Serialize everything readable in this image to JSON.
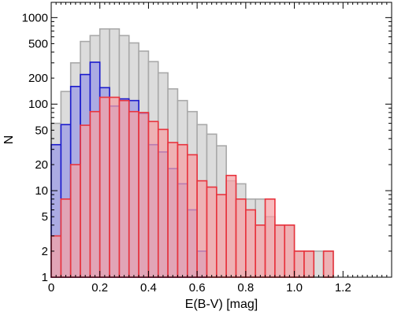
{
  "chart_data": {
    "type": "bar",
    "title": "",
    "xlabel": "E(B-V) [mag]",
    "ylabel": "N",
    "xlim": [
      0,
      1.4
    ],
    "ylim": [
      1,
      1500
    ],
    "y_scale": "log",
    "bin_width": 0.04,
    "x_ticks": [
      0,
      0.2,
      0.4,
      0.6,
      0.8,
      1.0,
      1.2
    ],
    "x_tick_labels": [
      "0",
      "0.2",
      "0.4",
      "0.6",
      "0.8",
      "1.0",
      "1.2"
    ],
    "y_ticks": [
      1,
      2,
      5,
      10,
      20,
      50,
      100,
      200,
      500,
      1000
    ],
    "y_tick_labels": [
      "1",
      "2",
      "5",
      "10",
      "20",
      "50",
      "100",
      "200",
      "500",
      "1000"
    ],
    "grid": false,
    "legend": "none",
    "series": [
      {
        "color": "#a9a9a9",
        "fill": "#dcdcdc",
        "bins_start": [
          0,
          0.04,
          0.08,
          0.12,
          0.16,
          0.2,
          0.24,
          0.28,
          0.32,
          0.36,
          0.4,
          0.44,
          0.48,
          0.52,
          0.56,
          0.6,
          0.64,
          0.68,
          0.72,
          0.76,
          0.8,
          0.84,
          0.88,
          0.92,
          0.96,
          1.0,
          1.04,
          1.08,
          1.12,
          1.16
        ],
        "values": [
          60,
          140,
          300,
          530,
          620,
          740,
          740,
          620,
          510,
          410,
          310,
          230,
          150,
          110,
          82,
          58,
          45,
          33,
          13,
          12,
          8,
          8,
          5,
          4,
          4,
          2,
          2,
          2,
          2,
          1
        ]
      },
      {
        "color": "#1a1acc",
        "fill": "#9999e6",
        "bins_start": [
          0,
          0.04,
          0.08,
          0.12,
          0.16,
          0.2,
          0.24,
          0.28,
          0.32,
          0.36,
          0.4,
          0.44,
          0.48,
          0.52,
          0.56,
          0.6
        ],
        "values": [
          34,
          58,
          160,
          220,
          305,
          155,
          95,
          115,
          110,
          78,
          34,
          28,
          18,
          12,
          6,
          2
        ]
      },
      {
        "color": "#e8333d",
        "fill": "#f5a1a5",
        "bins_start": [
          0,
          0.04,
          0.08,
          0.12,
          0.16,
          0.2,
          0.24,
          0.28,
          0.32,
          0.36,
          0.4,
          0.44,
          0.48,
          0.52,
          0.56,
          0.6,
          0.64,
          0.68,
          0.72,
          0.76,
          0.8,
          0.84,
          0.88,
          0.92,
          0.96,
          1.0,
          1.04,
          1.08,
          1.12,
          1.16
        ],
        "values": [
          3,
          8,
          20,
          57,
          82,
          120,
          120,
          110,
          82,
          80,
          63,
          51,
          36,
          34,
          26,
          13,
          11,
          9,
          15,
          8,
          6,
          4,
          8,
          4,
          4,
          2,
          2,
          0,
          2,
          0
        ]
      }
    ]
  }
}
